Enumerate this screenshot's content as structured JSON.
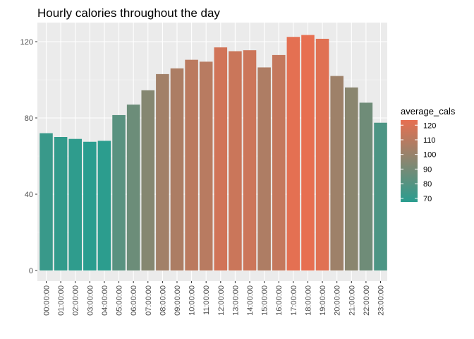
{
  "chart_data": {
    "type": "bar",
    "title": "Hourly calories throughout the day",
    "xlabel": "",
    "ylabel": "",
    "ylim": [
      0,
      130
    ],
    "yticks": [
      0,
      40,
      80,
      120
    ],
    "grid": true,
    "categories": [
      "00:00:00",
      "01:00:00",
      "02:00:00",
      "03:00:00",
      "04:00:00",
      "05:00:00",
      "06:00:00",
      "07:00:00",
      "08:00:00",
      "09:00:00",
      "10:00:00",
      "11:00:00",
      "12:00:00",
      "13:00:00",
      "14:00:00",
      "15:00:00",
      "16:00:00",
      "17:00:00",
      "18:00:00",
      "19:00:00",
      "20:00:00",
      "21:00:00",
      "22:00:00",
      "23:00:00"
    ],
    "values": [
      72,
      70,
      69,
      67.5,
      68,
      81.5,
      87,
      94.5,
      103,
      106,
      110.5,
      109.5,
      117,
      115,
      115.5,
      106.5,
      113,
      122.5,
      123.5,
      121.5,
      102,
      96,
      88,
      77.5
    ],
    "fill_by": "average_cals",
    "legend": {
      "title": "average_cals",
      "position": "right",
      "labels": [
        "120",
        "110",
        "100",
        "90",
        "80",
        "70"
      ],
      "label_values": [
        120,
        110,
        100,
        90,
        80,
        70
      ],
      "color_low": "#2a9d8f",
      "color_high": "#e76f51",
      "value_low": 67.5,
      "value_high": 123.5
    },
    "colors": {
      "panel_bg": "#ebebeb",
      "grid_major": "#ffffff",
      "tick_text": "#4d4d4d"
    }
  }
}
